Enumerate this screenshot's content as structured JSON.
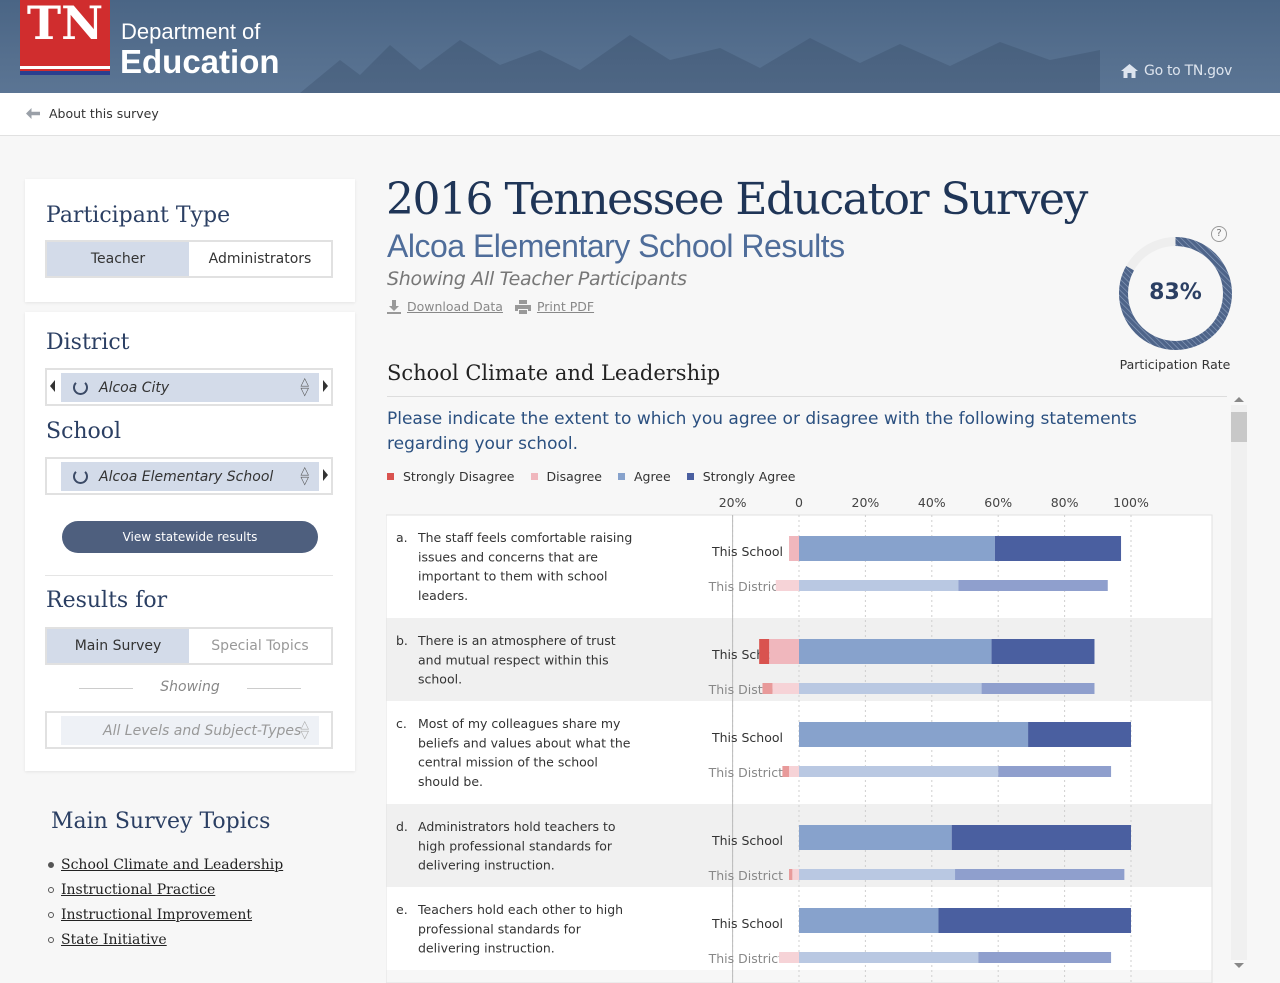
{
  "header": {
    "logo": "TN",
    "department_line1": "Department of",
    "department_line2": "Education",
    "goto_link": "Go to TN.gov"
  },
  "subbar": {
    "back_link": "About this survey"
  },
  "participant": {
    "title": "Participant Type",
    "options": [
      "Teacher",
      "Administrators"
    ],
    "selected": "Teacher"
  },
  "location": {
    "district_title": "District",
    "district_value": "Alcoa City",
    "school_title": "School",
    "school_value": "Alcoa Elementary School",
    "statewide_button": "View statewide results"
  },
  "results_for": {
    "title": "Results for",
    "options": [
      "Main Survey",
      "Special Topics"
    ],
    "selected": "Main Survey",
    "showing_label": "Showing",
    "levels_value": "All Levels and Subject-Types"
  },
  "topics": {
    "title": "Main Survey Topics",
    "items": [
      "School Climate and Leadership",
      "Instructional Practice",
      "Instructional Improvement",
      "State Initiative"
    ],
    "active": "School Climate and Leadership"
  },
  "main": {
    "title": "2016 Tennessee Educator Survey",
    "subtitle": "Alcoa Elementary School Results",
    "showing": "Showing All Teacher Participants",
    "download_label": "Download Data",
    "print_label": "Print PDF",
    "participation_value": "83%",
    "participation_fraction": 0.83,
    "participation_label": "Participation Rate",
    "help_icon_text": "?",
    "section_title": "School Climate and Leadership",
    "prompt": "Please indicate the extent to which you agree or disagree with the following statements regarding your school."
  },
  "colors": {
    "strongly_disagree": "#d9534f",
    "disagree": "#f0b7bd",
    "agree": "#87a2cc",
    "strongly_agree": "#4a5fa0",
    "district_strongly_disagree": "#e89a9a",
    "district_disagree": "#f6d3d7",
    "district_agree": "#b9c8e2",
    "district_strongly_agree": "#8f9fcd"
  },
  "chart_data": {
    "type": "bar",
    "orientation": "horizontal-diverging",
    "legend": [
      "Strongly Disagree",
      "Disagree",
      "Agree",
      "Strongly Agree"
    ],
    "xaxis_ticks": [
      "20%",
      "0",
      "20%",
      "40%",
      "60%",
      "80%",
      "100%"
    ],
    "xlim": [
      -20,
      100
    ],
    "row_labels": [
      "This School",
      "This District"
    ],
    "items": [
      {
        "letter": "a.",
        "text": [
          "The staff feels comfortable raising",
          "issues and concerns that are",
          "important to them with school",
          "leaders."
        ],
        "school": {
          "strongly_disagree": 0,
          "disagree": 3,
          "agree": 59,
          "strongly_agree": 38
        },
        "district": {
          "strongly_disagree": 0,
          "disagree": 7,
          "agree": 48,
          "strongly_agree": 45
        }
      },
      {
        "letter": "b.",
        "text": [
          "There is an atmosphere of trust",
          "and mutual respect within this",
          "school."
        ],
        "school": {
          "strongly_disagree": 3,
          "disagree": 9,
          "agree": 58,
          "strongly_agree": 31
        },
        "district": {
          "strongly_disagree": 3,
          "disagree": 8,
          "agree": 55,
          "strongly_agree": 34
        }
      },
      {
        "letter": "c.",
        "text": [
          "Most of my colleagues share my",
          "beliefs and values about what the",
          "central mission of the school",
          "should be."
        ],
        "school": {
          "strongly_disagree": 0,
          "disagree": 0,
          "agree": 69,
          "strongly_agree": 31
        },
        "district": {
          "strongly_disagree": 2,
          "disagree": 3,
          "agree": 60,
          "strongly_agree": 34
        }
      },
      {
        "letter": "d.",
        "text": [
          "Administrators hold teachers to",
          "high professional standards for",
          "delivering instruction."
        ],
        "school": {
          "strongly_disagree": 0,
          "disagree": 0,
          "agree": 46,
          "strongly_agree": 54
        },
        "district": {
          "strongly_disagree": 1,
          "disagree": 2,
          "agree": 47,
          "strongly_agree": 51
        }
      },
      {
        "letter": "e.",
        "text": [
          "Teachers hold each other to high",
          "professional standards for",
          "delivering instruction."
        ],
        "school": {
          "strongly_disagree": 0,
          "disagree": 0,
          "agree": 42,
          "strongly_agree": 58
        },
        "district": {
          "strongly_disagree": 0,
          "disagree": 6,
          "agree": 54,
          "strongly_agree": 40
        }
      }
    ]
  }
}
